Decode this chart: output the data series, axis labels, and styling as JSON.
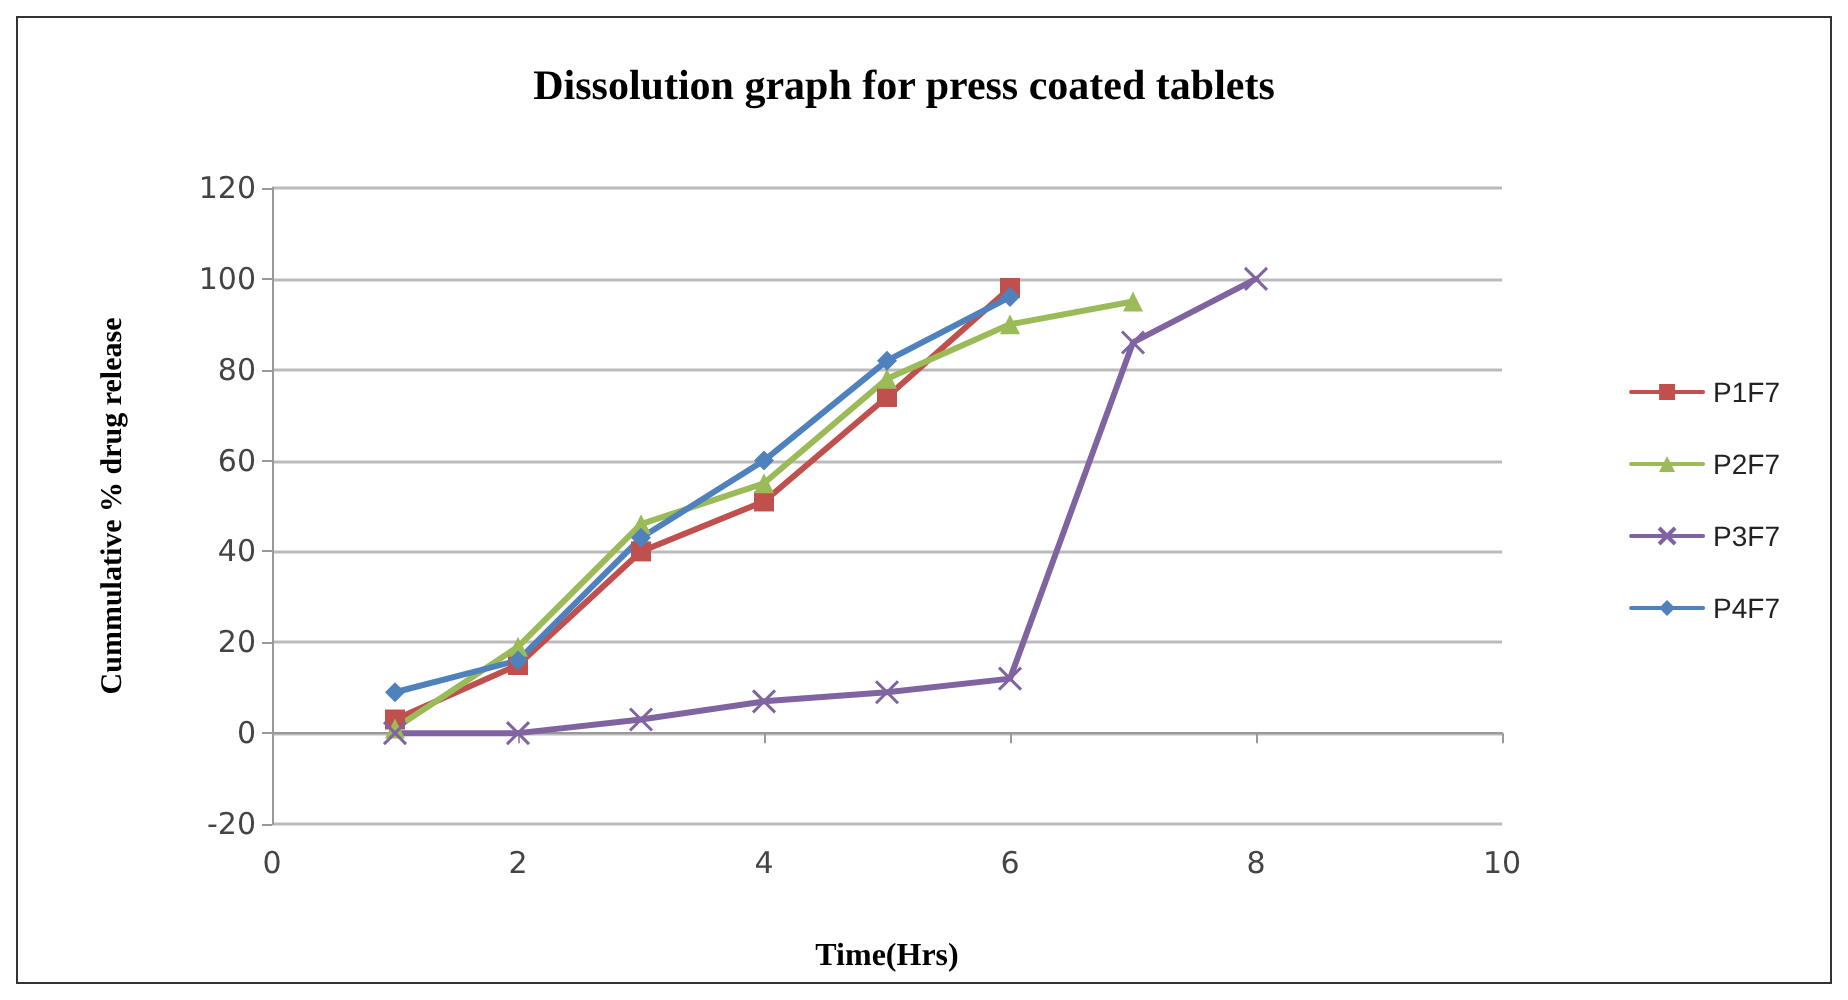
{
  "chart_data": {
    "type": "line",
    "title": "Dissolution graph for press coated tablets",
    "xlabel": "Time(Hrs)",
    "ylabel": "Cummulative % drug release",
    "xlim": [
      0,
      10
    ],
    "xticks": [
      0,
      2,
      4,
      6,
      8,
      10
    ],
    "ylim": [
      -20,
      120
    ],
    "yticks": [
      -20,
      0,
      20,
      40,
      60,
      80,
      100,
      120
    ],
    "grid": "y",
    "legend": "right",
    "series": [
      {
        "name": "P1F7",
        "color": "#c0504d",
        "marker": "square",
        "x": [
          1,
          2,
          3,
          4,
          5,
          6
        ],
        "values": [
          3,
          15,
          40,
          51,
          74,
          98
        ]
      },
      {
        "name": "P2F7",
        "color": "#9bbb59",
        "marker": "triangle",
        "x": [
          1,
          2,
          3,
          4,
          5,
          6,
          7
        ],
        "values": [
          1,
          19,
          46,
          55,
          78,
          90,
          95
        ]
      },
      {
        "name": "P3F7",
        "color": "#8064a2",
        "marker": "cross",
        "x": [
          1,
          2,
          3,
          4,
          5,
          6,
          7,
          8
        ],
        "values": [
          0,
          0,
          3,
          7,
          9,
          12,
          86,
          100
        ]
      },
      {
        "name": "P4F7",
        "color": "#4f81bd",
        "marker": "diamond",
        "x": [
          1,
          2,
          3,
          4,
          5,
          6
        ],
        "values": [
          9,
          16,
          43,
          60,
          82,
          96
        ]
      }
    ]
  }
}
